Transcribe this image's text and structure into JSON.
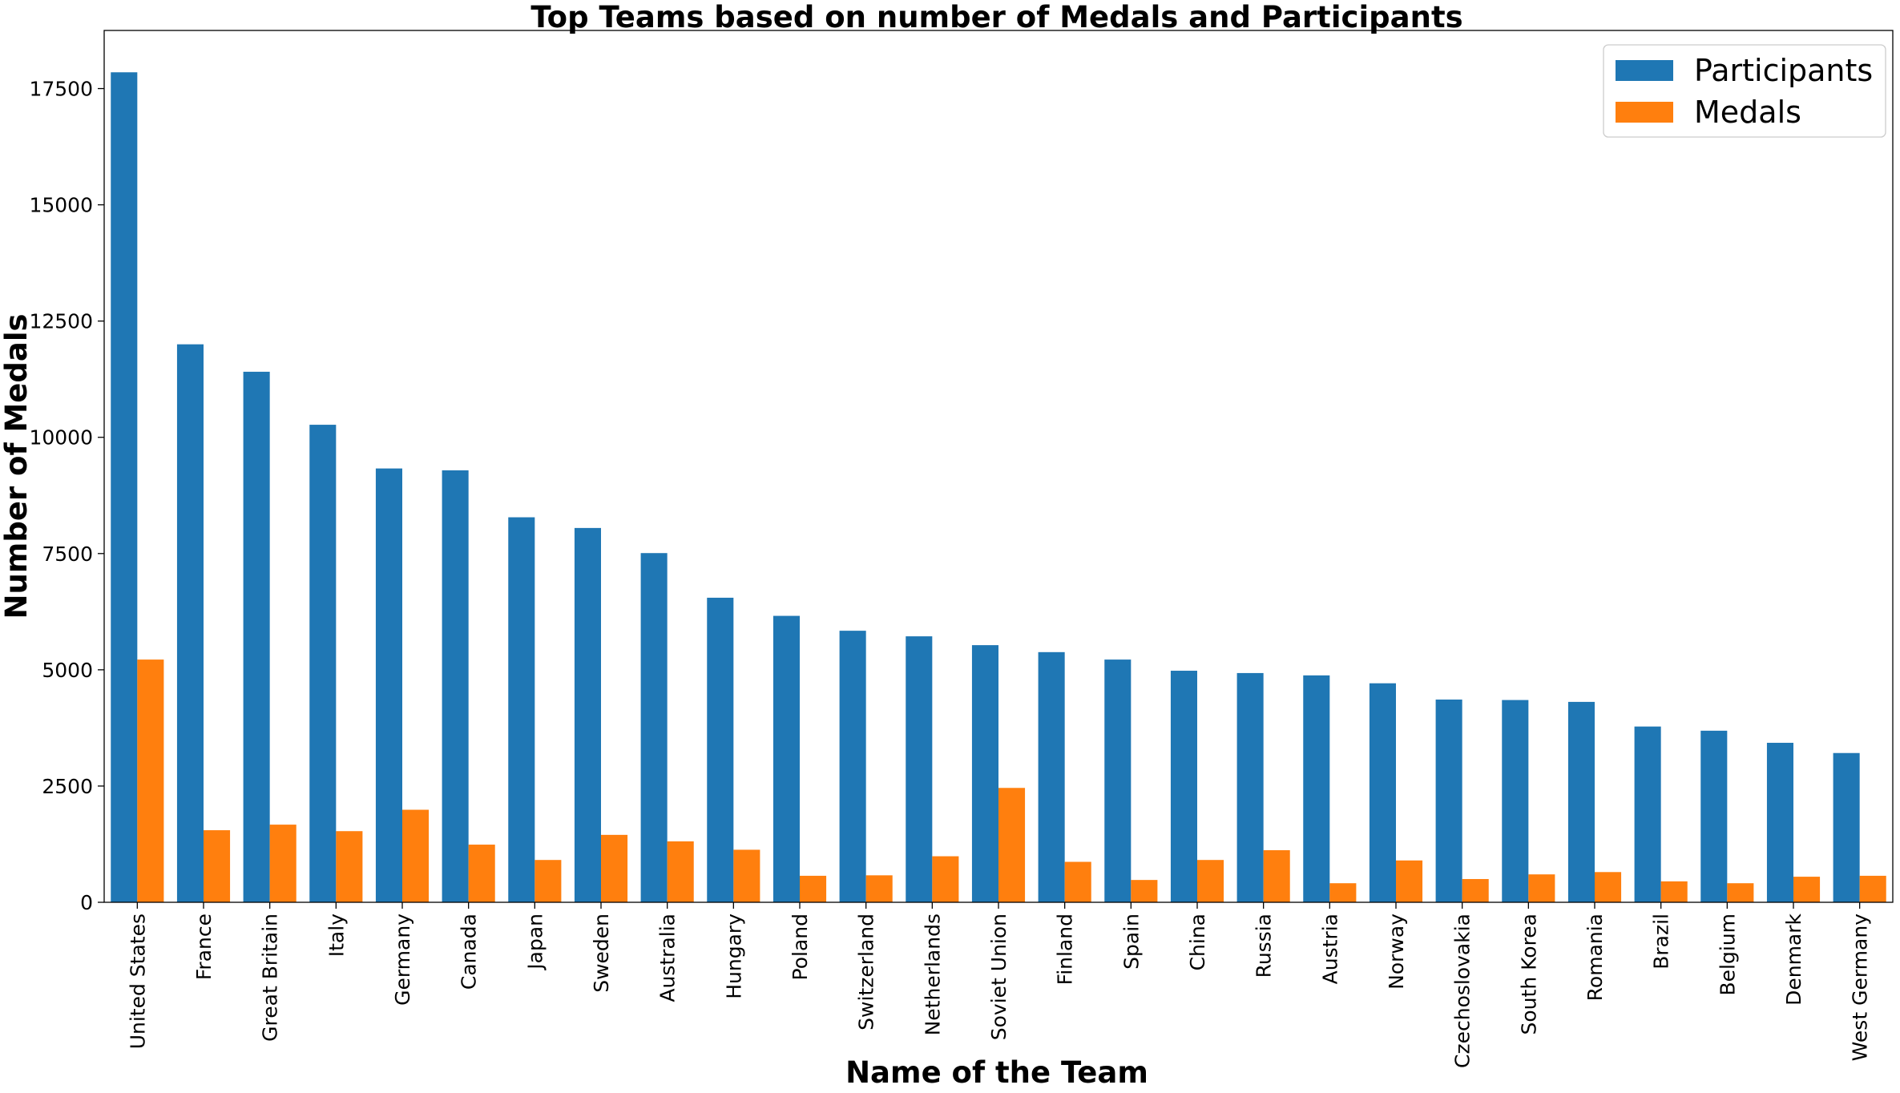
{
  "chart_data": {
    "type": "bar",
    "title": "Top Teams based on number of Medals and Participants",
    "xlabel": "Name of the Team",
    "ylabel": "Number of Medals",
    "ylim": [
      0,
      18750
    ],
    "yticks": [
      0,
      2500,
      5000,
      7500,
      10000,
      12500,
      15000,
      17500
    ],
    "grid": false,
    "legend_position": "top-right",
    "categories": [
      "United States",
      "France",
      "Great Britain",
      "Italy",
      "Germany",
      "Canada",
      "Japan",
      "Sweden",
      "Australia",
      "Hungary",
      "Poland",
      "Switzerland",
      "Netherlands",
      "Soviet Union",
      "Finland",
      "Spain",
      "China",
      "Russia",
      "Austria",
      "Norway",
      "Czechoslovakia",
      "South Korea",
      "Romania",
      "Brazil",
      "Belgium",
      "Denmark",
      "West Germany"
    ],
    "series": [
      {
        "name": "Participants",
        "color": "#1f77b4",
        "values": [
          17850,
          12000,
          11410,
          10270,
          9330,
          9290,
          8280,
          8050,
          7510,
          6550,
          6160,
          5840,
          5720,
          5530,
          5380,
          5220,
          4980,
          4930,
          4880,
          4710,
          4360,
          4350,
          4310,
          3780,
          3690,
          3430,
          3210
        ]
      },
      {
        "name": "Medals",
        "color": "#ff7f0e",
        "values": [
          5220,
          1550,
          1670,
          1530,
          1990,
          1240,
          910,
          1450,
          1310,
          1130,
          570,
          580,
          990,
          2460,
          870,
          480,
          910,
          1120,
          410,
          900,
          500,
          600,
          650,
          450,
          410,
          550,
          570
        ]
      }
    ]
  }
}
